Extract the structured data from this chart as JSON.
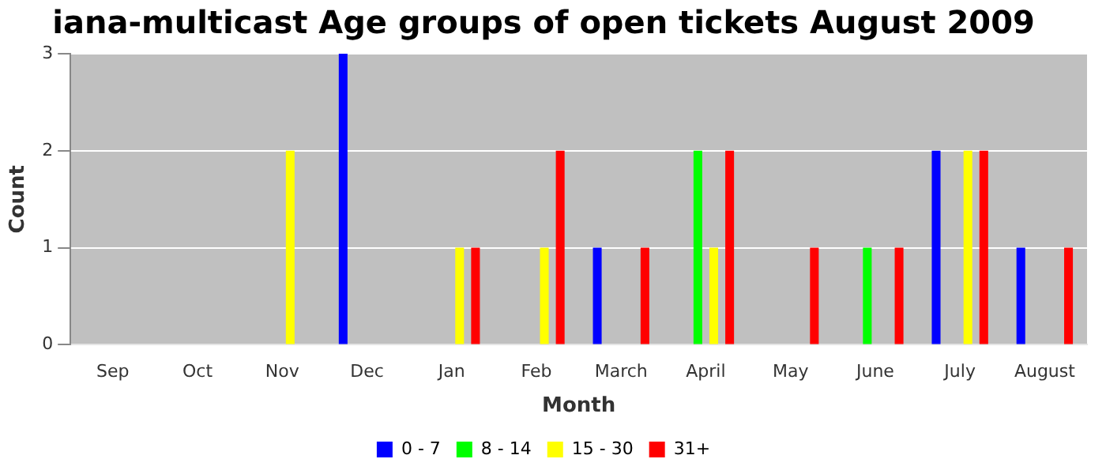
{
  "chart_data": {
    "type": "bar",
    "title": "iana-multicast Age groups of open tickets August 2009",
    "xlabel": "Month",
    "ylabel": "Count",
    "categories": [
      "Sep",
      "Oct",
      "Nov",
      "Dec",
      "Jan",
      "Feb",
      "March",
      "April",
      "May",
      "June",
      "July",
      "August"
    ],
    "series": [
      {
        "name": "0 - 7",
        "color": "#0000ff",
        "values": [
          0,
          0,
          0,
          3,
          0,
          0,
          1,
          0,
          0,
          0,
          2,
          1
        ]
      },
      {
        "name": "8 - 14",
        "color": "#00ff00",
        "values": [
          0,
          0,
          0,
          0,
          0,
          0,
          0,
          2,
          0,
          1,
          0,
          0
        ]
      },
      {
        "name": "15 - 30",
        "color": "#ffff00",
        "values": [
          0,
          0,
          2,
          0,
          1,
          1,
          0,
          1,
          0,
          0,
          2,
          0
        ]
      },
      {
        "name": "31+",
        "color": "#ff0000",
        "values": [
          0,
          0,
          0,
          0,
          1,
          2,
          1,
          2,
          1,
          1,
          2,
          1
        ]
      }
    ],
    "ylim": [
      0,
      3
    ],
    "yticks": [
      0,
      1,
      2,
      3
    ],
    "grid": "y",
    "legend": "bottom"
  }
}
